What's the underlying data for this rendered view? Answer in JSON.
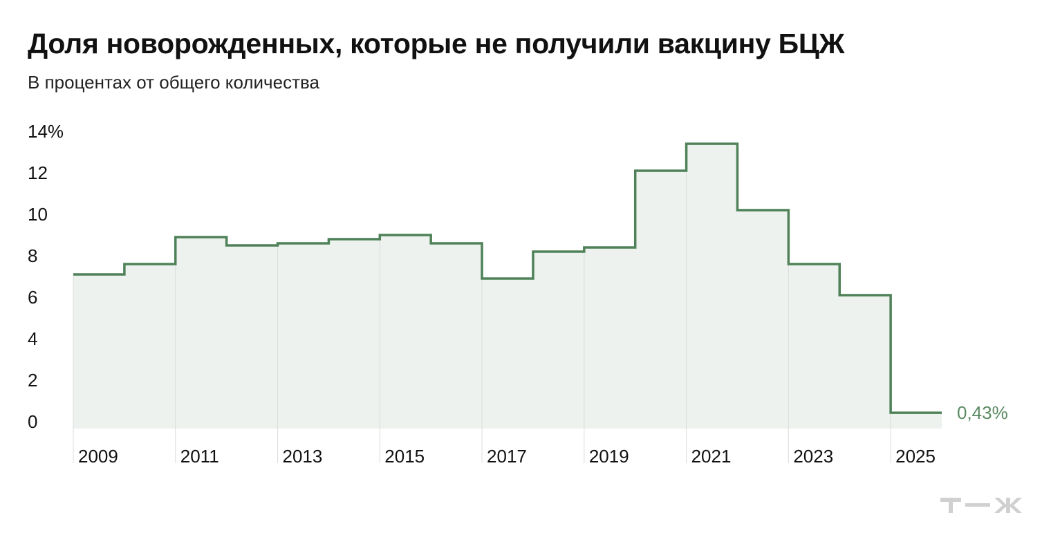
{
  "title": "Доля новорожденных, которые не получили вакцину БЦЖ",
  "subtitle": "В процентах от общего количества",
  "brand": "т—ж",
  "colors": {
    "line": "#4f8258",
    "fill": "#edf2ee",
    "grid": "#dcdcdc",
    "label_accent": "#5a8a62",
    "text": "#111111",
    "logo": "#d0d0d0"
  },
  "chart_data": {
    "type": "area",
    "step": true,
    "title": "Доля новорожденных, которые не получили вакцину БЦЖ",
    "subtitle": "В процентах от общего количества",
    "x": [
      2009,
      2010,
      2011,
      2012,
      2013,
      2014,
      2015,
      2016,
      2017,
      2018,
      2019,
      2020,
      2021,
      2022,
      2023,
      2024,
      2025
    ],
    "values": [
      7.1,
      7.6,
      8.9,
      8.5,
      8.6,
      8.8,
      9.0,
      8.6,
      6.9,
      8.2,
      8.4,
      12.1,
      13.4,
      10.2,
      7.6,
      6.1,
      0.43
    ],
    "x_tick_labels": [
      "2009",
      "2011",
      "2013",
      "2015",
      "2017",
      "2019",
      "2021",
      "2023",
      "2025"
    ],
    "y_tick_labels": [
      "0",
      "2",
      "4",
      "6",
      "8",
      "10",
      "12",
      "14%"
    ],
    "ylim": [
      0,
      14
    ],
    "xlabel": "",
    "ylabel": "",
    "grid": "vertical",
    "end_label": "0,43%"
  }
}
